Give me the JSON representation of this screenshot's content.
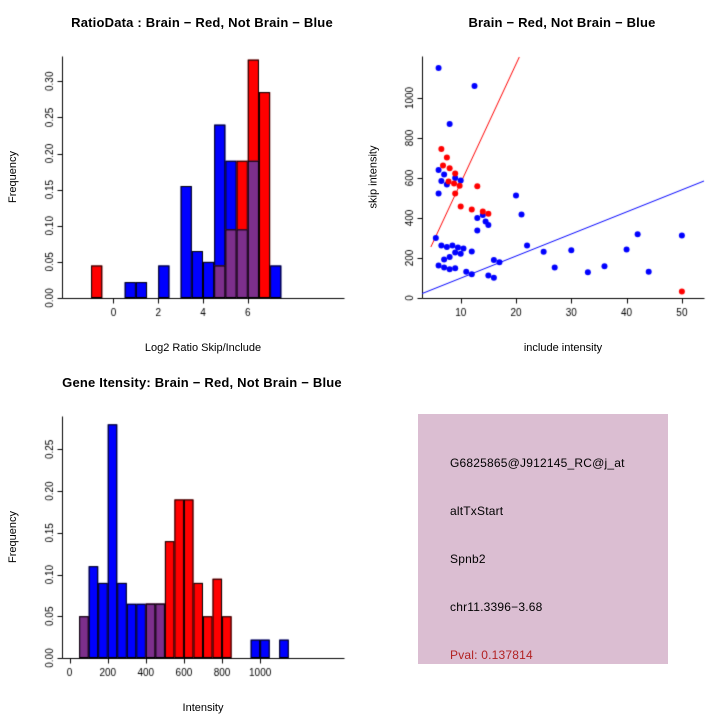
{
  "window": {
    "background": "#ffffff"
  },
  "chart_data": [
    {
      "id": "ratio-histogram",
      "type": "bar",
      "subtype": "overlaid-histogram",
      "title": "RatioData : Brain − Red, Not Brain − Blue",
      "xlabel": "Log2 Ratio Skip/Include",
      "ylabel": "Frequency",
      "xlim": [
        -2.3,
        10.3
      ],
      "ylim": [
        0,
        0.335
      ],
      "xticks": [
        0,
        2,
        4,
        6
      ],
      "yticks": [
        0,
        0.05,
        0.1,
        0.15,
        0.2,
        0.25,
        0.3
      ],
      "xtick_decimals": 0,
      "ytick_decimals": 2,
      "grid": false,
      "legend": "none",
      "bin_width": 0.5,
      "overlap_color": "#7d2f8c",
      "series": [
        {
          "name": "Not Brain",
          "color": "#0000ff",
          "bins": [
            [
              0.5,
              0.022
            ],
            [
              1,
              0.022
            ],
            [
              2,
              0.045
            ],
            [
              3,
              0.155
            ],
            [
              3.5,
              0.065
            ],
            [
              4,
              0.05
            ],
            [
              4.5,
              0.24
            ],
            [
              5,
              0.19
            ],
            [
              5.5,
              0.095
            ],
            [
              6,
              0.19
            ],
            [
              7,
              0.045
            ]
          ]
        },
        {
          "name": "Brain",
          "color": "#ff0000",
          "bins": [
            [
              -1,
              0.045
            ],
            [
              4.5,
              0.045
            ],
            [
              5,
              0.095
            ],
            [
              5.5,
              0.19
            ],
            [
              6,
              0.33
            ],
            [
              6.5,
              0.285
            ]
          ]
        }
      ]
    },
    {
      "id": "skip-vs-include-scatter",
      "type": "scatter",
      "title": "Brain − Red, Not Brain − Blue",
      "xlabel": "include intensity",
      "ylabel": "skip intensity",
      "xlim": [
        3,
        54
      ],
      "ylim": [
        0,
        1210
      ],
      "xticks": [
        10,
        20,
        30,
        40,
        50
      ],
      "yticks": [
        0,
        200,
        400,
        600,
        800,
        1000
      ],
      "xtick_decimals": 0,
      "ytick_decimals": 0,
      "grid": false,
      "legend": "none",
      "series": [
        {
          "name": "Not Brain",
          "color": "#0000ff",
          "points": [
            [
              6,
              1150
            ],
            [
              12.5,
              1060
            ],
            [
              8,
              870
            ],
            [
              6,
              640
            ],
            [
              7,
              618
            ],
            [
              6.5,
              585
            ],
            [
              7.5,
              568
            ],
            [
              9,
              600
            ],
            [
              10,
              588
            ],
            [
              6,
              522
            ],
            [
              20,
              512
            ],
            [
              21,
              418
            ],
            [
              13,
              400
            ],
            [
              14,
              415
            ],
            [
              14.5,
              382
            ],
            [
              15,
              365
            ],
            [
              13,
              338
            ],
            [
              5.5,
              300
            ],
            [
              6.5,
              262
            ],
            [
              7.5,
              255
            ],
            [
              8.5,
              263
            ],
            [
              9.5,
              252
            ],
            [
              10.5,
              248
            ],
            [
              9,
              228
            ],
            [
              10,
              221
            ],
            [
              12,
              232
            ],
            [
              8,
              205
            ],
            [
              7,
              193
            ],
            [
              6,
              163
            ],
            [
              7,
              152
            ],
            [
              8,
              144
            ],
            [
              9,
              149
            ],
            [
              16,
              190
            ],
            [
              17,
              179
            ],
            [
              15,
              113
            ],
            [
              16,
              101
            ],
            [
              11,
              131
            ],
            [
              12,
              119
            ],
            [
              22,
              262
            ],
            [
              25,
              231
            ],
            [
              27,
              153
            ],
            [
              30,
              239
            ],
            [
              33,
              129
            ],
            [
              36,
              159
            ],
            [
              40,
              243
            ],
            [
              42,
              319
            ],
            [
              44,
              131
            ],
            [
              50,
              313
            ]
          ]
        },
        {
          "name": "Brain",
          "color": "#ff0000",
          "points": [
            [
              6.5,
              745
            ],
            [
              7.5,
              702
            ],
            [
              6.8,
              663
            ],
            [
              8,
              649
            ],
            [
              9,
              623
            ],
            [
              7.8,
              583
            ],
            [
              8.8,
              573
            ],
            [
              9.8,
              561
            ],
            [
              9,
              523
            ],
            [
              13,
              559
            ],
            [
              10,
              458
            ],
            [
              12,
              443
            ],
            [
              14,
              433
            ],
            [
              15,
              421
            ],
            [
              50,
              32
            ]
          ]
        }
      ],
      "lines": [
        {
          "name": "brain-fit-line",
          "color": "#ff0000",
          "from": [
            4.6,
            255
          ],
          "to": [
            20.6,
            1205
          ]
        },
        {
          "name": "notbrain-fit-line",
          "color": "#0000ff",
          "from": [
            3,
            22
          ],
          "to": [
            54,
            585
          ]
        }
      ]
    },
    {
      "id": "gene-intensity-histogram",
      "type": "bar",
      "subtype": "overlaid-histogram",
      "title": "Gene Itensity: Brain − Red, Not Brain − Blue",
      "xlabel": "Intensity",
      "ylabel": "Frequency",
      "xlim": [
        -40,
        1440
      ],
      "ylim": [
        0,
        0.29
      ],
      "xticks": [
        0,
        200,
        400,
        600,
        800,
        1000
      ],
      "yticks": [
        0,
        0.05,
        0.1,
        0.15,
        0.2,
        0.25
      ],
      "xtick_decimals": 0,
      "ytick_decimals": 2,
      "grid": false,
      "legend": "none",
      "bin_width": 50,
      "overlap_color": "#7d2f8c",
      "series": [
        {
          "name": "Not Brain",
          "color": "#0000ff",
          "bins": [
            [
              50,
              0.05
            ],
            [
              100,
              0.11
            ],
            [
              150,
              0.09
            ],
            [
              200,
              0.28
            ],
            [
              250,
              0.09
            ],
            [
              300,
              0.065
            ],
            [
              350,
              0.065
            ],
            [
              400,
              0.065
            ],
            [
              450,
              0.065
            ],
            [
              950,
              0.022
            ],
            [
              1000,
              0.022
            ],
            [
              1100,
              0.022
            ]
          ]
        },
        {
          "name": "Brain",
          "color": "#ff0000",
          "bins": [
            [
              50,
              0.05
            ],
            [
              400,
              0.065
            ],
            [
              450,
              0.065
            ],
            [
              500,
              0.14
            ],
            [
              550,
              0.19
            ],
            [
              600,
              0.19
            ],
            [
              650,
              0.09
            ],
            [
              700,
              0.05
            ],
            [
              750,
              0.095
            ],
            [
              800,
              0.05
            ]
          ]
        }
      ]
    }
  ],
  "info_panel": {
    "bg_color": "#dbbed2",
    "pval_color": "#b22222",
    "lines": [
      {
        "text": "G6825865@J912145_RC@j_at",
        "color": "#000000"
      },
      {
        "text": "altTxStart",
        "color": "#000000"
      },
      {
        "text": "Spnb2",
        "color": "#000000"
      },
      {
        "text": "chr11.3396−3.68",
        "color": "#000000"
      },
      {
        "text": "Pval: 0.137814",
        "color": "#b22222"
      }
    ]
  }
}
